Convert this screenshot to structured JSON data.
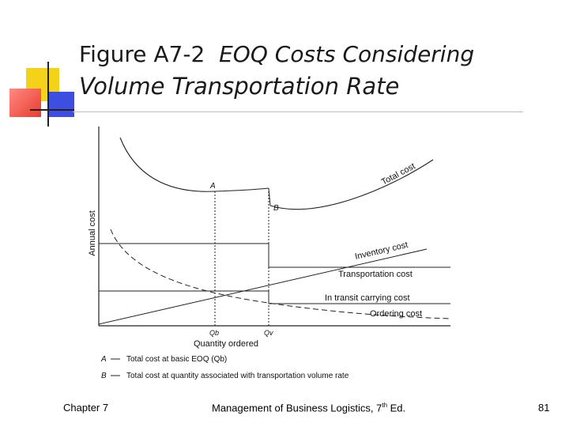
{
  "slide": {
    "title_prefix": "Figure A7-2",
    "title_italic_1": "EOQ Costs Considering",
    "title_italic_2": "Volume Transportation Rate"
  },
  "figure": {
    "y_axis_label": "Annual cost",
    "x_axis_label": "Quantity ordered",
    "point_a": "A",
    "point_b": "B",
    "curves": {
      "total_cost": "Total cost",
      "inventory_cost": "Inventory cost",
      "transportation_cost": "Transportation cost",
      "in_transit": "In transit carrying cost",
      "ordering_cost": "Ordering cost"
    },
    "x_ticks": {
      "qb": "Qb",
      "qv": "Qv"
    },
    "legend": [
      {
        "key": "A",
        "text": "Total cost at basic EOQ (Qb)"
      },
      {
        "key": "B",
        "text": "Total cost at quantity associated with transportation volume rate"
      }
    ]
  },
  "footer": {
    "chapter": "Chapter 7",
    "book": "Management of Business Logistics, 7",
    "edition_sup": "th",
    "edition_rest": " Ed.",
    "page": "81"
  },
  "colors": {
    "accent_yellow": "#f5d21a",
    "accent_red": "#e93b2f",
    "accent_blue": "#3c4fe0"
  }
}
